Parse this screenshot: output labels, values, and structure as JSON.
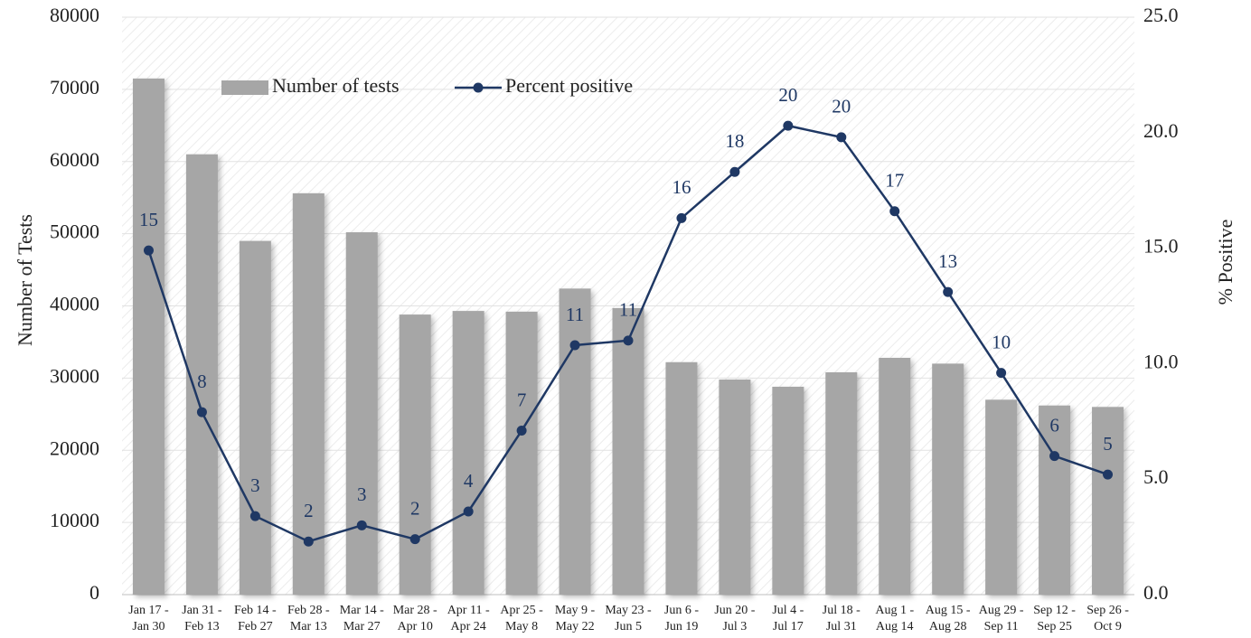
{
  "chart_data": {
    "type": "bar_line",
    "ylabel": "Number of Tests",
    "y2label": "% Positive",
    "categories": [
      "Jan 17 -\nJan 30",
      "Jan 31 -\nFeb 13",
      "Feb 14 -\nFeb 27",
      "Feb 28 -\nMar 13",
      "Mar 14 -\nMar 27",
      "Mar 28 -\nApr 10",
      "Apr 11 -\nApr 24",
      "Apr 25 -\nMay 8",
      "May 9 -\nMay 22",
      "May 23 -\nJun 5",
      "Jun 6 -\nJun 19",
      "Jun 20 -\nJul 3",
      "Jul 4 -\nJul 17",
      "Jul 18 -\nJul 31",
      "Aug 1 -\nAug 14",
      "Aug 15 -\nAug 28",
      "Aug 29 -\nSep 11",
      "Sep 12 -\nSep 25",
      "Sep 26 -\nOct 9"
    ],
    "series": [
      {
        "name": "Number of tests",
        "type": "bar",
        "color": "#a6a6a6",
        "values": [
          71500,
          61000,
          49000,
          55600,
          50200,
          38800,
          39300,
          39200,
          42400,
          39700,
          32200,
          29800,
          28800,
          30800,
          32800,
          32000,
          27000,
          26200,
          26000
        ]
      },
      {
        "name": "Percent positive",
        "type": "line",
        "axis": "y2",
        "color": "#1f3864",
        "values": [
          14.9,
          7.9,
          3.4,
          2.3,
          3.0,
          2.4,
          3.6,
          7.1,
          10.8,
          11.0,
          16.3,
          18.3,
          20.3,
          19.8,
          16.6,
          13.1,
          9.6,
          6.0,
          5.2
        ],
        "value_labels": [
          "15",
          "8",
          "3",
          "2",
          "3",
          "2",
          "4",
          "7",
          "11",
          "11",
          "16",
          "18",
          "20",
          "20",
          "17",
          "13",
          "10",
          "6",
          "5"
        ]
      }
    ],
    "ylim": [
      0,
      80000
    ],
    "yticks": [
      0,
      10000,
      20000,
      30000,
      40000,
      50000,
      60000,
      70000,
      80000
    ],
    "y2lim": [
      0,
      25
    ],
    "y2ticks": [
      {
        "value": 0,
        "label": "0.0"
      },
      {
        "value": 5,
        "label": "5.0"
      },
      {
        "value": 10,
        "label": "10.0"
      },
      {
        "value": 15,
        "label": "15.0"
      },
      {
        "value": 20,
        "label": "20.0"
      },
      {
        "value": 25,
        "label": "25.0"
      }
    ],
    "grid": true,
    "legend": "top-left"
  }
}
